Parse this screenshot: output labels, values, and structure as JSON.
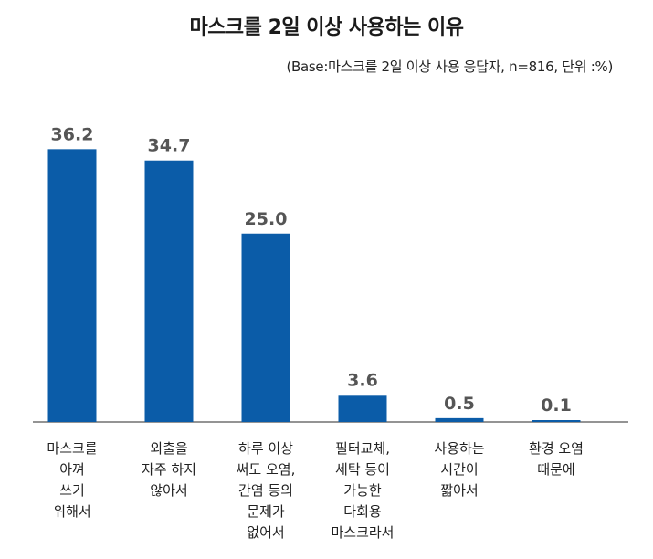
{
  "chart_data": {
    "type": "bar",
    "title": "마스크를 2일 이상 사용하는 이유",
    "note": "(Base:마스크를 2일 이상 사용 응답자, n=816, 단위 :%)",
    "categories": [
      [
        "마스크를",
        "아껴",
        "쓰기",
        "위해서"
      ],
      [
        "외출을",
        "자주 하지",
        "않아서"
      ],
      [
        "하루 이상",
        "써도 오염,",
        "간염 등의",
        "문제가",
        "없어서"
      ],
      [
        "필터교체,",
        "세탁 등이",
        "가능한",
        "다회용",
        "마스크라서"
      ],
      [
        "사용하는",
        "시간이",
        "짧아서"
      ],
      [
        "환경 오염",
        "때문에"
      ]
    ],
    "values": [
      36.2,
      34.7,
      25.0,
      3.6,
      0.5,
      0.1
    ],
    "value_labels": [
      "36.2",
      "34.7",
      "25.0",
      "3.6",
      "0.5",
      "0.1"
    ],
    "ylim": [
      0,
      40
    ],
    "colors": {
      "bar": "#0b5ca8"
    }
  }
}
